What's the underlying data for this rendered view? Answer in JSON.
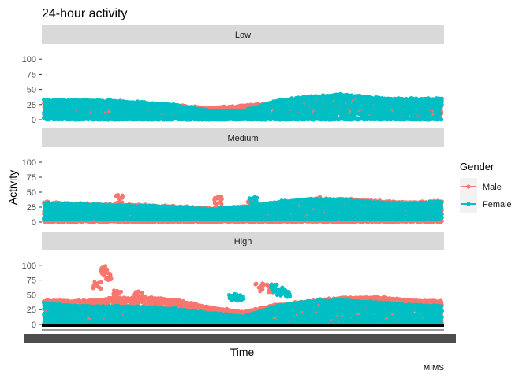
{
  "chart_data": {
    "type": "scatter",
    "title": "24-hour activity",
    "xlabel": "Time",
    "ylabel": "Activity",
    "caption": "MIMS",
    "ylim": [
      0,
      125
    ],
    "yticks": [
      0,
      25,
      50,
      75,
      100
    ],
    "legend": {
      "title": "Gender",
      "placement": "right",
      "entries": [
        {
          "name": "Male",
          "color": "#F8766D"
        },
        {
          "name": "Female",
          "color": "#00BFC4"
        }
      ]
    },
    "x_axis_tick_labels_overplotted": true,
    "x_profile_hours": [
      0,
      2,
      4,
      6,
      8,
      10,
      12,
      14,
      16,
      18,
      20,
      22,
      24
    ],
    "facets": [
      {
        "label": "Low",
        "series": [
          {
            "name": "Male",
            "color": "#F8766D",
            "upper": [
              28,
              27,
              26,
              24,
              22,
              18,
              22,
              27,
              32,
              33,
              30,
              30,
              33
            ],
            "lower": [
              6,
              6,
              6,
              6,
              6,
              7,
              10,
              10,
              10,
              10,
              10,
              8,
              8
            ],
            "peaks": []
          },
          {
            "name": "Female",
            "color": "#00BFC4",
            "upper": [
              32,
              31,
              30,
              27,
              23,
              14,
              13,
              30,
              37,
              41,
              35,
              33,
              34
            ],
            "lower": [
              0,
              0,
              0,
              0,
              0,
              0,
              0,
              0,
              0,
              0,
              0,
              0,
              0
            ],
            "peaks": []
          }
        ]
      },
      {
        "label": "Medium",
        "series": [
          {
            "name": "Male",
            "color": "#F8766D",
            "upper": [
              32,
              30,
              28,
              27,
              25,
              22,
              25,
              30,
              36,
              38,
              34,
              32,
              34
            ],
            "lower": [
              0,
              0,
              0,
              0,
              0,
              0,
              0,
              0,
              0,
              0,
              0,
              0,
              0
            ],
            "peaks": [
              [
                4.5,
                46
              ],
              [
                10.5,
                44
              ],
              [
                16.5,
                43
              ],
              [
                12.5,
                38
              ]
            ]
          },
          {
            "name": "Female",
            "color": "#00BFC4",
            "upper": [
              30,
              29,
              27,
              26,
              24,
              20,
              24,
              32,
              38,
              36,
              32,
              30,
              33
            ],
            "lower": [
              5,
              5,
              5,
              5,
              5,
              5,
              5,
              5,
              5,
              5,
              5,
              5,
              5
            ],
            "peaks": [
              [
                12.6,
                42
              ],
              [
                14.5,
                36
              ]
            ]
          }
        ]
      },
      {
        "label": "High",
        "series": [
          {
            "name": "Male",
            "color": "#F8766D",
            "upper": [
              40,
              38,
              42,
              45,
              40,
              28,
              20,
              32,
              38,
              44,
              45,
              40,
              38
            ],
            "lower": [
              0,
              0,
              0,
              0,
              0,
              0,
              0,
              0,
              0,
              0,
              0,
              0,
              0
            ],
            "peaks": [
              [
                3.2,
                72
              ],
              [
                3.6,
                100
              ],
              [
                3.8,
                88
              ],
              [
                4.4,
                58
              ],
              [
                5.7,
                58
              ],
              [
                13.0,
                70
              ],
              [
                13.6,
                68
              ]
            ]
          },
          {
            "name": "Female",
            "color": "#00BFC4",
            "upper": [
              35,
              30,
              30,
              28,
              25,
              18,
              12,
              30,
              38,
              40,
              36,
              32,
              30
            ],
            "lower": [
              0,
              0,
              0,
              0,
              0,
              0,
              0,
              0,
              0,
              0,
              0,
              0,
              0
            ],
            "peaks": [
              [
                11.4,
                52
              ],
              [
                11.8,
                53
              ],
              [
                13.9,
                68
              ],
              [
                14.3,
                63
              ],
              [
                14.6,
                58
              ]
            ]
          }
        ]
      }
    ]
  }
}
